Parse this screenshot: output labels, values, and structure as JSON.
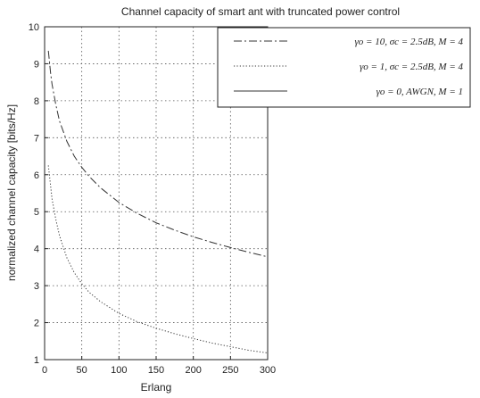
{
  "chart_data": {
    "type": "line",
    "title": "Channel capacity of smart ant  with truncated power control",
    "xlabel": "Erlang",
    "ylabel": "normalized channel capacity [bits/Hz]",
    "xlim": [
      0,
      300
    ],
    "ylim": [
      1,
      10
    ],
    "xticks": [
      0,
      50,
      100,
      150,
      200,
      250,
      300
    ],
    "yticks": [
      1,
      2,
      3,
      4,
      5,
      6,
      7,
      8,
      9,
      10
    ],
    "grid": true,
    "legend_position": "top-right",
    "series": [
      {
        "name": "γo = 10, σc = 2.5dB, M = 4",
        "style": "dash-dot",
        "x": [
          5,
          8,
          10,
          15,
          20,
          30,
          40,
          50,
          60,
          75,
          100,
          125,
          150,
          175,
          200,
          225,
          250,
          275,
          300
        ],
        "y": [
          9.35,
          8.75,
          8.45,
          7.9,
          7.45,
          6.9,
          6.5,
          6.2,
          5.95,
          5.65,
          5.25,
          4.95,
          4.7,
          4.5,
          4.32,
          4.17,
          4.03,
          3.9,
          3.78
        ]
      },
      {
        "name": "γo = 1, σc = 2.5dB, M = 4",
        "style": "dotted",
        "x": [
          5,
          8,
          10,
          15,
          20,
          30,
          40,
          50,
          60,
          75,
          100,
          125,
          150,
          175,
          200,
          225,
          250,
          275,
          300
        ],
        "y": [
          6.25,
          5.7,
          5.35,
          4.8,
          4.35,
          3.75,
          3.35,
          3.05,
          2.82,
          2.57,
          2.25,
          2.02,
          1.85,
          1.7,
          1.57,
          1.45,
          1.35,
          1.25,
          1.18
        ]
      },
      {
        "name": "γo = 0, AWGN, M = 1",
        "style": "solid",
        "x": [],
        "y": []
      }
    ],
    "legend_labels": [
      "γo = 10, σc = 2.5dB, M = 4",
      "γo = 1, σc = 2.5dB, M = 4",
      "γo = 0, AWGN, M = 1"
    ]
  }
}
